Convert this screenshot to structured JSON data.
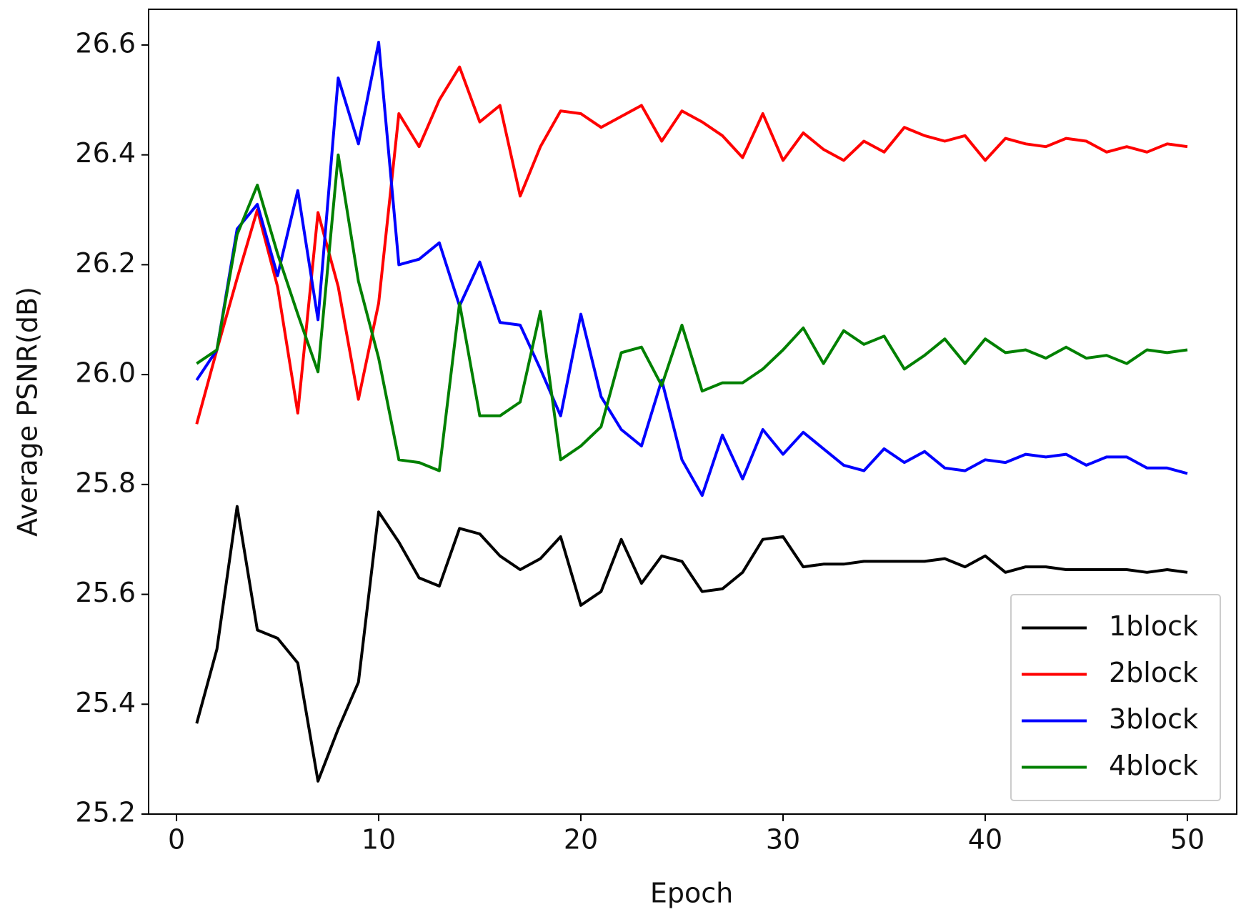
{
  "chart_data": {
    "type": "line",
    "x_label": "Epoch",
    "y_label": "Average PSNR(dB)",
    "x": [
      1,
      2,
      3,
      4,
      5,
      6,
      7,
      8,
      9,
      10,
      11,
      12,
      13,
      14,
      15,
      16,
      17,
      18,
      19,
      20,
      21,
      22,
      23,
      24,
      25,
      26,
      27,
      28,
      29,
      30,
      31,
      32,
      33,
      34,
      35,
      36,
      37,
      38,
      39,
      40,
      41,
      42,
      43,
      44,
      45,
      46,
      47,
      48,
      49,
      50
    ],
    "series": [
      {
        "name": "1block",
        "color": "#000000",
        "values": [
          25.365,
          25.5,
          25.76,
          25.535,
          25.52,
          25.475,
          25.26,
          25.355,
          25.44,
          25.75,
          25.695,
          25.63,
          25.615,
          25.72,
          25.71,
          25.67,
          25.645,
          25.665,
          25.705,
          25.58,
          25.605,
          25.7,
          25.62,
          25.67,
          25.66,
          25.605,
          25.61,
          25.64,
          25.7,
          25.705,
          25.65,
          25.655,
          25.655,
          25.66,
          25.66,
          25.66,
          25.66,
          25.665,
          25.65,
          25.67,
          25.64,
          25.65,
          25.65,
          25.645,
          25.645,
          25.645,
          25.645,
          25.64,
          25.645,
          25.64
        ]
      },
      {
        "name": "2block",
        "color": "#ff0000",
        "values": [
          25.91,
          26.045,
          26.175,
          26.3,
          26.16,
          25.93,
          26.295,
          26.16,
          25.955,
          26.13,
          26.475,
          26.415,
          26.5,
          26.56,
          26.46,
          26.49,
          26.325,
          26.415,
          26.48,
          26.475,
          26.45,
          26.47,
          26.49,
          26.425,
          26.48,
          26.46,
          26.435,
          26.395,
          26.475,
          26.39,
          26.44,
          26.41,
          26.39,
          26.425,
          26.405,
          26.45,
          26.435,
          26.425,
          26.435,
          26.39,
          26.43,
          26.42,
          26.415,
          26.43,
          26.425,
          26.405,
          26.415,
          26.405,
          26.42,
          26.415
        ]
      },
      {
        "name": "3block",
        "color": "#0000ff",
        "values": [
          25.99,
          26.045,
          26.265,
          26.31,
          26.18,
          26.335,
          26.1,
          26.54,
          26.42,
          26.605,
          26.2,
          26.21,
          26.24,
          26.125,
          26.205,
          26.095,
          26.09,
          26.01,
          25.925,
          26.11,
          25.96,
          25.9,
          25.87,
          25.99,
          25.845,
          25.78,
          25.89,
          25.81,
          25.9,
          25.855,
          25.895,
          25.865,
          25.835,
          25.825,
          25.865,
          25.84,
          25.86,
          25.83,
          25.825,
          25.845,
          25.84,
          25.855,
          25.85,
          25.855,
          25.835,
          25.85,
          25.85,
          25.83,
          25.83,
          25.82
        ]
      },
      {
        "name": "4block",
        "color": "#008000",
        "values": [
          26.02,
          26.045,
          26.255,
          26.345,
          26.22,
          26.11,
          26.005,
          26.4,
          26.17,
          26.03,
          25.845,
          25.84,
          25.825,
          26.13,
          25.925,
          25.925,
          25.95,
          26.115,
          25.845,
          25.87,
          25.905,
          26.04,
          26.05,
          25.98,
          26.09,
          25.97,
          25.985,
          25.985,
          26.01,
          26.045,
          26.085,
          26.02,
          26.08,
          26.055,
          26.07,
          26.01,
          26.035,
          26.065,
          26.02,
          26.065,
          26.04,
          26.045,
          26.03,
          26.05,
          26.03,
          26.035,
          26.02,
          26.045,
          26.04,
          26.045
        ]
      }
    ],
    "xlim": [
      -1.38,
      52.44
    ],
    "ylim": [
      25.2,
      26.665
    ],
    "xticks": [
      0,
      10,
      20,
      30,
      40,
      50
    ],
    "yticks": [
      25.2,
      25.4,
      25.6,
      25.8,
      {
        "value": 26,
        "label": "26.0"
      },
      26.2,
      26.4,
      26.6
    ],
    "legend": "lower right",
    "grid": false
  }
}
